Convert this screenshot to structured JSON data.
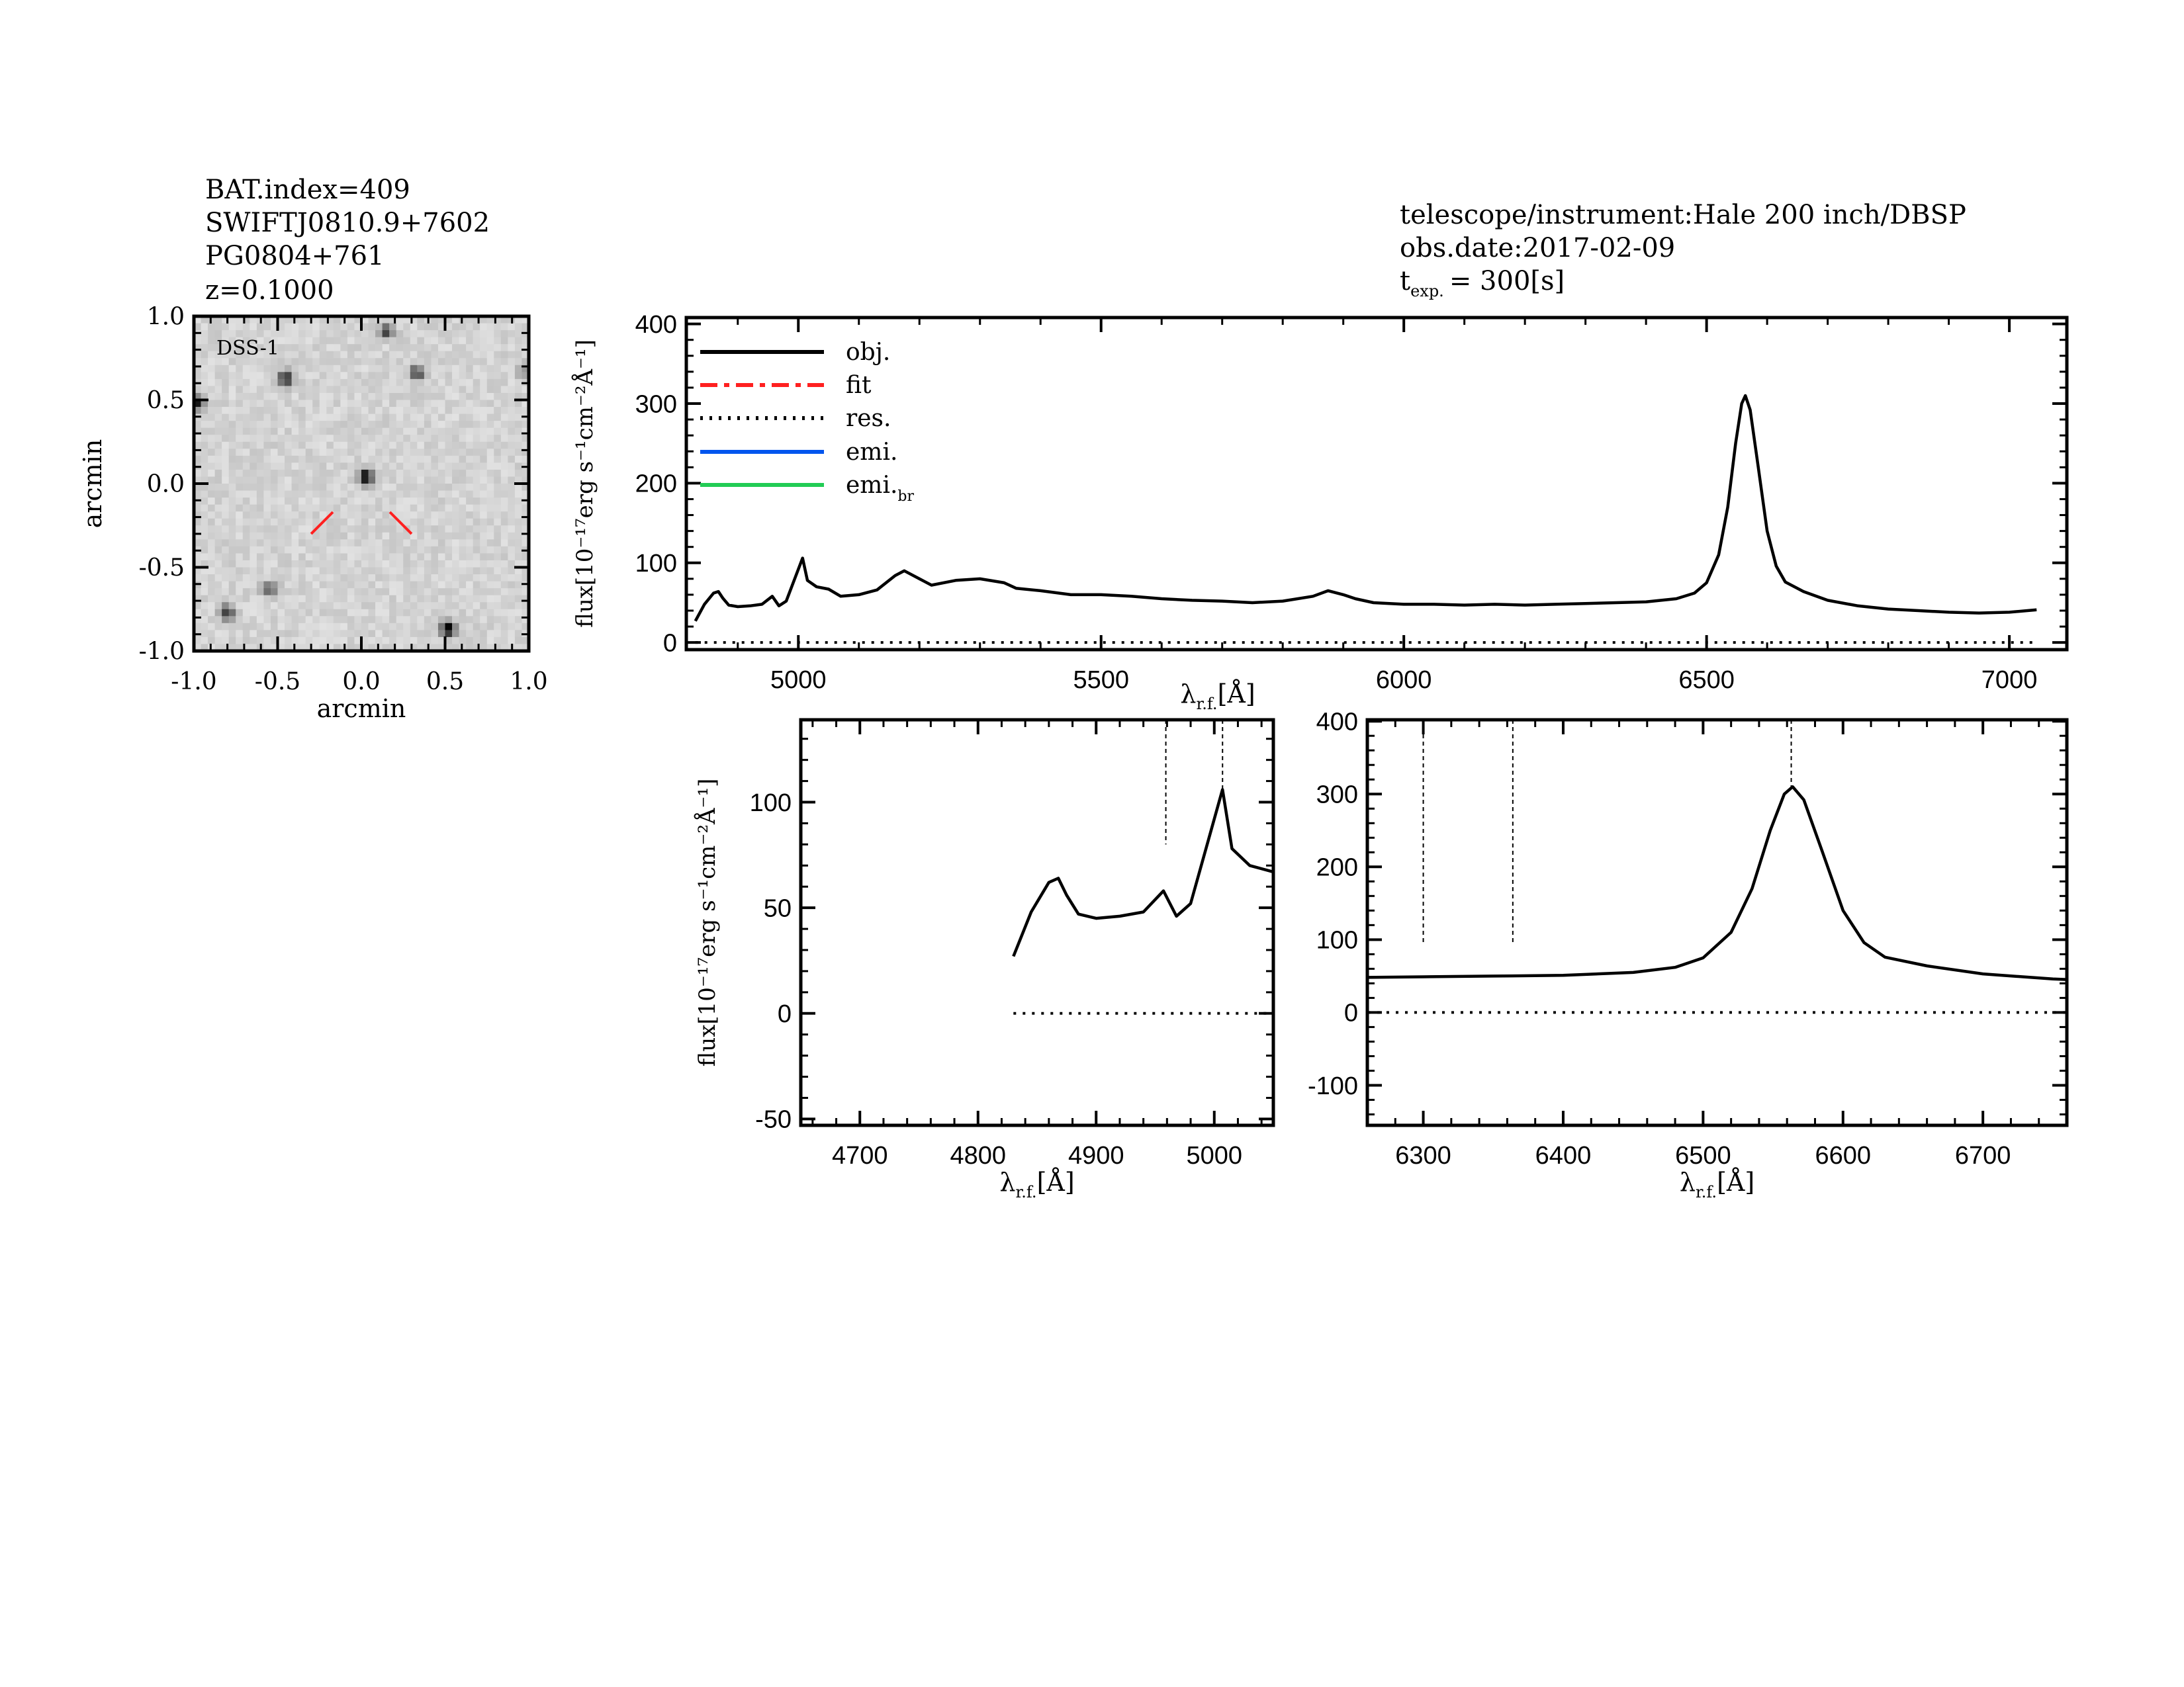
{
  "header_left": {
    "bat_index": "BAT.index=409",
    "swift_name": "SWIFTJ0810.9+7602",
    "counterpart": "PG0804+761",
    "redshift": "z=0.1000"
  },
  "header_right": {
    "telescope": "telescope/instrument:Hale 200 inch/DBSP",
    "obs_date": "obs.date:2017-02-09",
    "texp_main": "t",
    "texp_sub": "exp.",
    "texp_value": "= 300[s]"
  },
  "colors": {
    "obj": "#000000",
    "fit": "#ff2020",
    "res": "#000000",
    "emi": "#0055ee",
    "emi_br": "#22cc55",
    "marker": "#ff2020"
  },
  "chart_data": [
    {
      "type": "image",
      "title": "DSS-1",
      "xlabel": "arcmin",
      "ylabel": "arcmin",
      "xlim": [
        -1.0,
        1.0
      ],
      "ylim": [
        -1.0,
        1.0
      ],
      "xticks": [
        "-1.0",
        "-0.5",
        "0.0",
        "0.5",
        "1.0"
      ],
      "yticks": [
        "-1.0",
        "-0.5",
        "0.0",
        "0.5",
        "1.0"
      ],
      "xtick_values": [
        -1.0,
        -0.5,
        0.0,
        0.5,
        1.0
      ],
      "ytick_values": [
        -1.0,
        -0.5,
        0.0,
        0.5,
        1.0
      ],
      "sources": [
        {
          "x": 0.03,
          "y": 0.04,
          "strength": 1.0
        },
        {
          "x": 0.52,
          "y": -0.87,
          "strength": 0.95
        },
        {
          "x": -0.45,
          "y": 0.63,
          "strength": 0.8
        },
        {
          "x": 0.33,
          "y": 0.66,
          "strength": 0.65
        },
        {
          "x": 0.15,
          "y": 0.91,
          "strength": 0.65
        },
        {
          "x": -0.98,
          "y": 0.48,
          "strength": 0.75
        },
        {
          "x": -0.8,
          "y": -0.77,
          "strength": 0.7
        },
        {
          "x": -0.55,
          "y": -0.63,
          "strength": 0.55
        },
        {
          "x": 0.97,
          "y": 0.67,
          "strength": 0.35
        }
      ]
    },
    {
      "type": "line",
      "xlabel_main": "λ",
      "xlabel_sub": "r.f.",
      "xlabel_unit": "[Å]",
      "ylabel": "flux[10⁻¹⁷erg s⁻¹cm⁻²Å⁻¹]",
      "xlim": [
        4815,
        7095
      ],
      "ylim": [
        -9,
        408
      ],
      "xticks": [
        "5000",
        "5500",
        "6000",
        "6500",
        "7000"
      ],
      "xtick_values": [
        5000,
        5500,
        6000,
        6500,
        7000
      ],
      "yticks": [
        "0",
        "100",
        "200",
        "300",
        "400"
      ],
      "ytick_values": [
        0,
        100,
        200,
        300,
        400
      ],
      "legend": {
        "position": "top-left",
        "entries": [
          {
            "label": "obj.",
            "style": "solid",
            "color": "#000000"
          },
          {
            "label": "fit",
            "style": "dashdot",
            "color": "#ff2020"
          },
          {
            "label": "res.",
            "style": "dotted",
            "color": "#000000"
          },
          {
            "label": "emi.",
            "style": "solid",
            "color": "#0055ee"
          },
          {
            "label": "emi.",
            "sub": "br",
            "style": "solid",
            "color": "#22cc55"
          }
        ]
      }
    },
    {
      "type": "line",
      "xlabel_main": "λ",
      "xlabel_sub": "r.f.",
      "xlabel_unit": "[Å]",
      "ylabel": "flux[10⁻¹⁷erg s⁻¹cm⁻²Å⁻¹]",
      "xlim": [
        4650,
        5050
      ],
      "ylim": [
        -53,
        139
      ],
      "xticks": [
        "4700",
        "4800",
        "4900",
        "5000"
      ],
      "xtick_values": [
        4700,
        4800,
        4900,
        5000
      ],
      "yticks": [
        "-50",
        "0",
        "50",
        "100"
      ],
      "ytick_values": [
        -50,
        0,
        50,
        100
      ],
      "line_markers": [
        {
          "x": 4959,
          "to": 80
        },
        {
          "x": 5007,
          "to": 106
        }
      ]
    },
    {
      "type": "line",
      "xlabel_main": "λ",
      "xlabel_sub": "r.f.",
      "xlabel_unit": "[Å]",
      "ylabel": "",
      "xlim": [
        6260,
        6760
      ],
      "ylim": [
        -155,
        402
      ],
      "xticks": [
        "6300",
        "6400",
        "6500",
        "6600",
        "6700"
      ],
      "xtick_values": [
        6300,
        6400,
        6500,
        6600,
        6700
      ],
      "yticks": [
        "-100",
        "0",
        "100",
        "200",
        "300",
        "400"
      ],
      "ytick_values": [
        -100,
        0,
        100,
        200,
        300,
        400
      ],
      "line_markers": [
        {
          "x": 6300,
          "to": 95
        },
        {
          "x": 6364,
          "to": 95
        },
        {
          "x": 6563,
          "to": 310
        }
      ]
    }
  ],
  "spectrum": {
    "wavelength": [
      4830,
      4845,
      4860,
      4868,
      4875,
      4885,
      4900,
      4920,
      4940,
      4957,
      4968,
      4980,
      4995,
      5007,
      5015,
      5030,
      5050,
      5070,
      5100,
      5130,
      5160,
      5175,
      5200,
      5220,
      5260,
      5300,
      5340,
      5360,
      5400,
      5450,
      5500,
      5550,
      5600,
      5650,
      5700,
      5750,
      5800,
      5850,
      5875,
      5900,
      5920,
      5950,
      6000,
      6050,
      6100,
      6150,
      6200,
      6250,
      6300,
      6350,
      6400,
      6450,
      6480,
      6500,
      6520,
      6535,
      6548,
      6558,
      6564,
      6572,
      6585,
      6600,
      6615,
      6630,
      6660,
      6700,
      6750,
      6800,
      6850,
      6900,
      6950,
      7000,
      7045
    ],
    "flux": [
      27,
      48,
      62,
      64,
      56,
      47,
      45,
      46,
      48,
      58,
      46,
      52,
      82,
      106,
      78,
      70,
      67,
      58,
      60,
      66,
      84,
      90,
      80,
      72,
      78,
      80,
      75,
      68,
      65,
      60,
      60,
      58,
      55,
      53,
      52,
      50,
      52,
      58,
      65,
      60,
      55,
      50,
      48,
      48,
      47,
      48,
      47,
      48,
      49,
      50,
      51,
      55,
      62,
      75,
      110,
      170,
      250,
      300,
      310,
      292,
      222,
      140,
      96,
      76,
      64,
      53,
      46,
      42,
      40,
      38,
      37,
      38,
      41
    ]
  },
  "residual_level": 0
}
